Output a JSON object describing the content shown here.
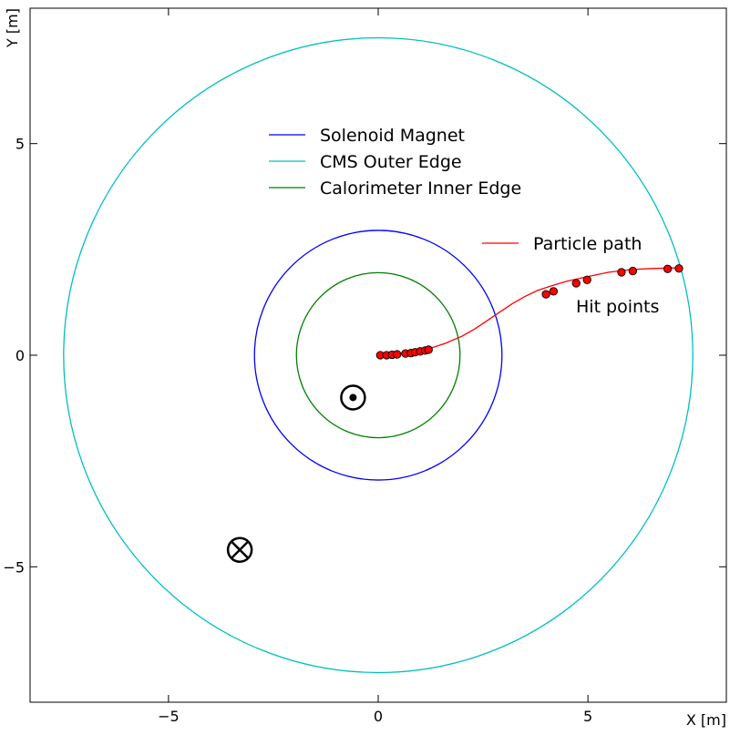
{
  "chart_data": {
    "type": "line",
    "xlabel": "X [m]",
    "ylabel": "Y [m]",
    "xlim": [
      -8.3,
      8.3
    ],
    "ylim": [
      -8.2,
      8.2
    ],
    "x_ticks": [
      -5,
      0,
      5
    ],
    "y_ticks": [
      -5,
      0,
      5
    ],
    "x_tick_labels": [
      "−5",
      "0",
      "5"
    ],
    "y_tick_labels": [
      "−5",
      "0",
      "5"
    ],
    "grid": false,
    "aspect": "equal",
    "series": [
      {
        "name": "Solenoid Magnet",
        "shape": "circle",
        "center": [
          0,
          0
        ],
        "radius": 2.95,
        "color": "#0000ff"
      },
      {
        "name": "CMS Outer Edge",
        "shape": "circle",
        "center": [
          0,
          0
        ],
        "radius": 7.5,
        "color": "#00bfbf"
      },
      {
        "name": "Calorimeter Inner Edge",
        "shape": "circle",
        "center": [
          0,
          0
        ],
        "radius": 1.95,
        "color": "#008000"
      },
      {
        "name": "Particle path",
        "color": "#ff0000",
        "x": [
          0,
          0.4,
          0.8,
          1.2,
          1.6,
          2.0,
          2.3,
          2.6,
          2.9,
          3.2,
          3.5,
          3.8,
          4.1,
          4.5,
          5.0,
          5.5,
          6.0,
          6.5,
          7.0,
          7.2
        ],
        "y": [
          0,
          0.03,
          0.07,
          0.15,
          0.28,
          0.45,
          0.62,
          0.82,
          1.02,
          1.22,
          1.39,
          1.53,
          1.63,
          1.75,
          1.86,
          1.96,
          2.02,
          2.05,
          2.06,
          2.07
        ]
      }
    ],
    "hit_points": {
      "label": "Hit points",
      "color": "#ff0000",
      "x": [
        0.05,
        0.2,
        0.33,
        0.45,
        0.65,
        0.78,
        0.88,
        1.0,
        1.12,
        1.2,
        4.0,
        4.18,
        4.72,
        4.98,
        5.8,
        6.07,
        6.9,
        7.17
      ],
      "y": [
        0.0,
        0.0,
        0.01,
        0.02,
        0.04,
        0.05,
        0.07,
        0.09,
        0.11,
        0.13,
        1.44,
        1.51,
        1.7,
        1.78,
        1.96,
        1.99,
        2.04,
        2.05
      ]
    },
    "field_out_symbol": {
      "x": -0.6,
      "y": -1.0
    },
    "field_in_symbol": {
      "x": -3.3,
      "y": -4.6
    },
    "legend": {
      "location": "upper-center",
      "entries": [
        "Solenoid Magnet",
        "CMS Outer Edge",
        "Calorimeter Inner Edge"
      ]
    },
    "legend2": {
      "location": "upper-right",
      "entries": [
        "Particle path"
      ]
    }
  }
}
